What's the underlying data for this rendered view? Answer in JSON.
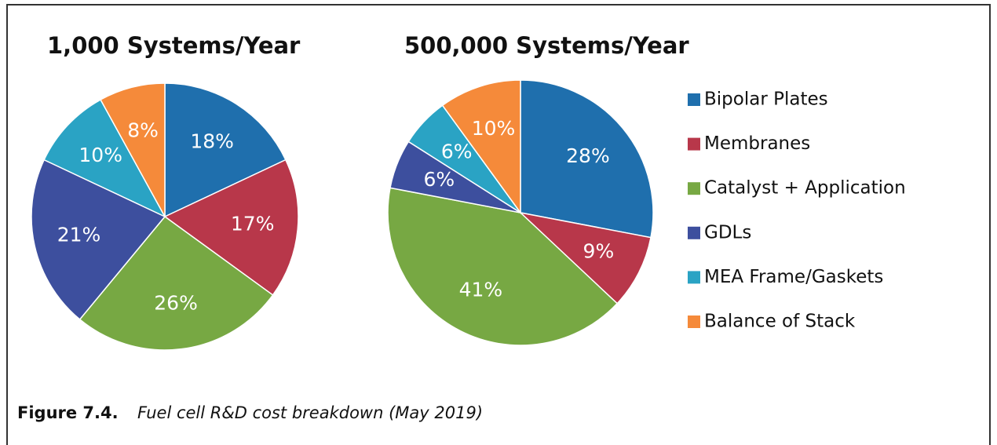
{
  "chart_data": [
    {
      "type": "pie",
      "title": "1,000 Systems/Year",
      "categories": [
        "Bipolar Plates",
        "Membranes",
        "Catalyst + Application",
        "GDLs",
        "MEA Frame/Gaskets",
        "Balance of Stack"
      ],
      "colors": [
        "#1f6fad",
        "#b8374a",
        "#77a843",
        "#3d4f9e",
        "#2aa3c4",
        "#f58a3a"
      ],
      "values": [
        18,
        17,
        26,
        21,
        10,
        8
      ],
      "value_labels": [
        "18%",
        "17%",
        "26%",
        "21%",
        "10%",
        "8%"
      ]
    },
    {
      "type": "pie",
      "title": "500,000 Systems/Year",
      "values": [
        28,
        9,
        41,
        6,
        6,
        10
      ],
      "value_labels": [
        "28%",
        "9%",
        "41%",
        "6%",
        "6%",
        "10%"
      ]
    }
  ],
  "caption": {
    "label": "Figure 7.4.",
    "text": "Fuel cell R&D cost breakdown (May 2019)"
  }
}
